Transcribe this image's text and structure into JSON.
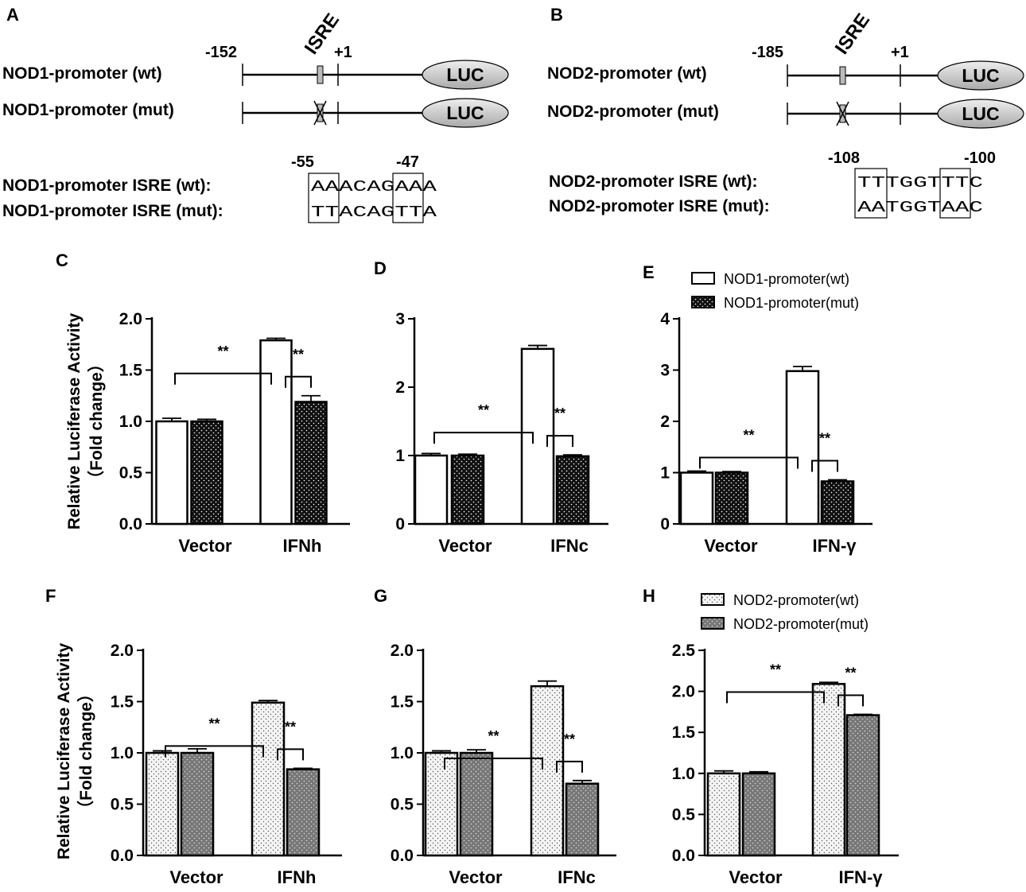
{
  "diagram": {
    "A": {
      "panel_label": "A",
      "rows": [
        {
          "label": "NOD1-promoter (wt)",
          "luc": "LUC",
          "mutated": false
        },
        {
          "label": "NOD1-promoter (mut)",
          "luc": "LUC",
          "mutated": true
        }
      ],
      "positions": {
        "start": "-152",
        "isre": "ISRE",
        "tss": "+1"
      },
      "seq_positions": {
        "left": "-55",
        "right": "-47"
      },
      "seq_rows": [
        {
          "label": "NOD1-promoter ISRE (wt):",
          "seq": "AAACAGAAA"
        },
        {
          "label": "NOD1-promoter ISRE (mut):",
          "seq": "TTACAGTTA"
        }
      ]
    },
    "B": {
      "panel_label": "B",
      "rows": [
        {
          "label": "NOD2-promoter (wt)",
          "luc": "LUC",
          "mutated": false
        },
        {
          "label": "NOD2-promoter (mut)",
          "luc": "LUC",
          "mutated": true
        }
      ],
      "positions": {
        "start": "-185",
        "isre": "ISRE",
        "tss": "+1"
      },
      "seq_positions": {
        "left": "-108",
        "right": "-100"
      },
      "seq_rows": [
        {
          "label": "NOD2-promoter ISRE (wt):",
          "seq": "TTTGGTTTC"
        },
        {
          "label": "NOD2-promoter ISRE (mut):",
          "seq": "AATGGTAAC"
        }
      ]
    }
  },
  "chart_data": [
    {
      "panel": "C",
      "type": "bar",
      "ylabel": "Relative Luciferase Activity",
      "ylabel2": "（Fold change）",
      "categories": [
        "Vector",
        "IFNh"
      ],
      "ylim": [
        0,
        2.0
      ],
      "yticks": [
        "0.0",
        "0.5",
        "1.0",
        "1.5",
        "2.0"
      ],
      "fill": "open-dark",
      "series": [
        {
          "name": "NOD1-promoter(wt)",
          "values": [
            1.0,
            1.79
          ],
          "errors": [
            0.03,
            0.02
          ]
        },
        {
          "name": "NOD1-promoter(mut)",
          "values": [
            1.0,
            1.19
          ],
          "errors": [
            0.02,
            0.06
          ]
        }
      ],
      "significance": [
        "**",
        "**"
      ]
    },
    {
      "panel": "D",
      "type": "bar",
      "categories": [
        "Vector",
        "IFNc"
      ],
      "ylim": [
        0,
        3
      ],
      "yticks": [
        "0",
        "1",
        "2",
        "3"
      ],
      "fill": "open-dark",
      "series": [
        {
          "name": "NOD1-promoter(wt)",
          "values": [
            1.0,
            2.56
          ],
          "errors": [
            0.03,
            0.05
          ]
        },
        {
          "name": "NOD1-promoter(mut)",
          "values": [
            1.0,
            0.99
          ],
          "errors": [
            0.02,
            0.02
          ]
        }
      ],
      "significance": [
        "**",
        "**"
      ]
    },
    {
      "panel": "E",
      "type": "bar",
      "categories": [
        "Vector",
        "IFN-γ"
      ],
      "ylim": [
        0,
        4
      ],
      "yticks": [
        "0",
        "1",
        "2",
        "3",
        "4"
      ],
      "fill": "open-dark",
      "legend": [
        "NOD1-promoter(wt)",
        "NOD1-promoter(mut)"
      ],
      "series": [
        {
          "name": "NOD1-promoter(wt)",
          "values": [
            1.0,
            2.98
          ],
          "errors": [
            0.03,
            0.09
          ]
        },
        {
          "name": "NOD1-promoter(mut)",
          "values": [
            1.0,
            0.83
          ],
          "errors": [
            0.02,
            0.03
          ]
        }
      ],
      "significance": [
        "**",
        "**"
      ]
    },
    {
      "panel": "F",
      "type": "bar",
      "ylabel": "Relative Luciferase Activity",
      "ylabel2": "（Fold change）",
      "categories": [
        "Vector",
        "IFNh"
      ],
      "ylim": [
        0,
        2.0
      ],
      "yticks": [
        "0.0",
        "0.5",
        "1.0",
        "1.5",
        "2.0"
      ],
      "fill": "light-grey",
      "series": [
        {
          "name": "NOD2-promoter(wt)",
          "values": [
            1.0,
            1.49
          ],
          "errors": [
            0.02,
            0.02
          ]
        },
        {
          "name": "NOD2-promoter(mut)",
          "values": [
            1.0,
            0.84
          ],
          "errors": [
            0.04,
            0.01
          ]
        }
      ],
      "significance": [
        "**",
        "**"
      ]
    },
    {
      "panel": "G",
      "type": "bar",
      "categories": [
        "Vector",
        "IFNc"
      ],
      "ylim": [
        0,
        2.0
      ],
      "yticks": [
        "0.0",
        "0.5",
        "1.0",
        "1.5",
        "2.0"
      ],
      "fill": "light-grey",
      "series": [
        {
          "name": "NOD2-promoter(wt)",
          "values": [
            1.0,
            1.65
          ],
          "errors": [
            0.02,
            0.05
          ]
        },
        {
          "name": "NOD2-promoter(mut)",
          "values": [
            1.0,
            0.7
          ],
          "errors": [
            0.03,
            0.03
          ]
        }
      ],
      "significance": [
        "**",
        "**"
      ]
    },
    {
      "panel": "H",
      "type": "bar",
      "categories": [
        "Vector",
        "IFN-γ"
      ],
      "ylim": [
        0,
        2.5
      ],
      "yticks": [
        "0.0",
        "0.5",
        "1.0",
        "1.5",
        "2.0",
        "2.5"
      ],
      "fill": "light-grey",
      "legend": [
        "NOD2-promoter(wt)",
        "NOD2-promoter(mut)"
      ],
      "series": [
        {
          "name": "NOD2-promoter(wt)",
          "values": [
            1.0,
            2.09
          ],
          "errors": [
            0.03,
            0.02
          ]
        },
        {
          "name": "NOD2-promoter(mut)",
          "values": [
            1.0,
            1.71
          ],
          "errors": [
            0.02,
            0.01
          ]
        }
      ],
      "significance": [
        "**",
        "**"
      ]
    }
  ],
  "colors": {
    "ink": "#000000",
    "wt_light": "#f4f4f4",
    "mut_dark": "#111111",
    "mut_grey": "#777777",
    "luc_fill": "#cccccc"
  }
}
